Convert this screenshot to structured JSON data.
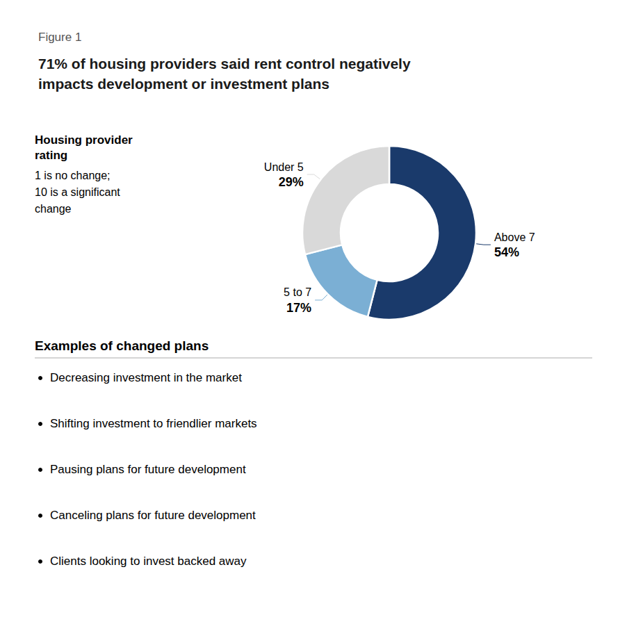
{
  "chart_data": {
    "type": "pie",
    "title": "71% of housing providers said rent control negatively\nimpacts development or investment plans",
    "subtitle": "Figure 1",
    "categories": [
      "Above 7",
      "5 to 7",
      "Under 5"
    ],
    "values": [
      54,
      17,
      29
    ],
    "value_labels": [
      "54%",
      "17%",
      "29%"
    ],
    "colors": [
      "#1a3a6b",
      "#7bafd4",
      "#d9d9d9"
    ],
    "data_labels": true,
    "annotations": [
      "Housing provider\nrating",
      "1 is no change;\n10 is a significant\nchange",
      "Examples of changed plans",
      "Decreasing investment in the market",
      "Shifting investment to friendlier markets",
      "Pausing plans for future development",
      "Canceling plans for future development",
      "Clients looking to invest backed away"
    ]
  }
}
